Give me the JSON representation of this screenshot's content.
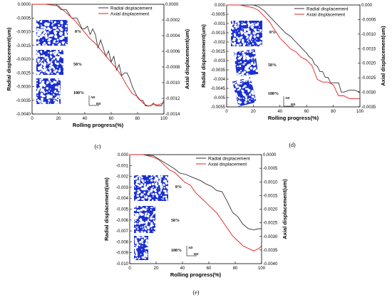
{
  "chart_data": [
    {
      "type": "line",
      "caption": "(c)",
      "xlabel": "Rolling progress(%)",
      "ylabel": "Radial displacement(um)",
      "y2label": "Axial displacement(um)",
      "xlim": [
        0,
        100
      ],
      "ylim": [
        -0.004,
        0.0
      ],
      "y2lim": [
        -0.0014,
        0.0
      ],
      "xticks": [
        "0",
        "20",
        "40",
        "60",
        "80",
        "100"
      ],
      "yticks": [
        "0.0000",
        "-0.0005",
        "-0.0010",
        "-0.0015",
        "-0.0020",
        "-0.0025",
        "-0.0030",
        "-0.0035",
        "-0.0040"
      ],
      "y2ticks": [
        "0.0000",
        "-0.0002",
        "-0.0004",
        "-0.0006",
        "-0.0008",
        "-0.0010",
        "-0.0012",
        "-0.0014"
      ],
      "series": [
        {
          "name": "Radial displacement",
          "color": "#333333",
          "axis": "left",
          "x": [
            0,
            10,
            18,
            22,
            26,
            30,
            34,
            38,
            40,
            42,
            44,
            46,
            48,
            50,
            52,
            54,
            56,
            58,
            60,
            62,
            64,
            66,
            68,
            70,
            72,
            74,
            76,
            78,
            80,
            82,
            84,
            86,
            88,
            90,
            92,
            94,
            96,
            98,
            100
          ],
          "values": [
            0.0,
            0.0,
            0.0,
            -0.0002,
            -0.0002,
            -0.0005,
            -0.0005,
            -0.0009,
            -0.0009,
            -0.0008,
            -0.0011,
            -0.0009,
            -0.0011,
            -0.0016,
            -0.0013,
            -0.0016,
            -0.0019,
            -0.0017,
            -0.0021,
            -0.0019,
            -0.0024,
            -0.0022,
            -0.0026,
            -0.0025,
            -0.0025,
            -0.0027,
            -0.003,
            -0.0032,
            -0.0034,
            -0.0035,
            -0.0035,
            -0.0037,
            -0.0037,
            -0.0037,
            -0.0036,
            -0.0037,
            -0.0037,
            -0.0037,
            -0.0035
          ]
        },
        {
          "name": "Axial displacement",
          "color": "#e02020",
          "axis": "right",
          "x": [
            0,
            10,
            20,
            24,
            28,
            32,
            36,
            40,
            44,
            48,
            52,
            56,
            60,
            64,
            68,
            72,
            76,
            80,
            84,
            88,
            92,
            96,
            100
          ],
          "values": [
            0.0,
            0.0,
            -2e-05,
            -8e-05,
            -0.00014,
            -0.0002,
            -0.00028,
            -0.00036,
            -0.00044,
            -0.0005,
            -0.00058,
            -0.00066,
            -0.00074,
            -0.00082,
            -0.00092,
            -0.00104,
            -0.00114,
            -0.00118,
            -0.00126,
            -0.0013,
            -0.00128,
            -0.00128,
            -0.00126
          ]
        }
      ],
      "insets": [
        {
          "label": "0%",
          "seed": 11,
          "rot": 0
        },
        {
          "label": "50%",
          "seed": 12,
          "rot": 0
        },
        {
          "label": "100%",
          "seed": 13,
          "rot": 0
        }
      ],
      "direction": {
        "ad": "AD",
        "rd": "RD"
      }
    },
    {
      "type": "line",
      "caption": "(d)",
      "xlabel": "Rolling progress(%)",
      "ylabel": "Radial displacement(um)",
      "y2label": "Axial displacement(um)",
      "xlim": [
        0,
        100
      ],
      "ylim": [
        -0.0055,
        0.0
      ],
      "y2lim": [
        -0.0037,
        0.0
      ],
      "xticks": [
        "0",
        "20",
        "40",
        "60",
        "80",
        "100"
      ],
      "yticks": [
        "0.000",
        "-0.0005",
        "-0.001",
        "-0.0015",
        "-0.002",
        "-0.0025",
        "-0.003",
        "-0.0035",
        "-0.004",
        "-0.0045",
        "-0.005",
        "-0.0055"
      ],
      "y2ticks": [
        "0.000",
        "-0.0005",
        "-0.0010",
        "-0.0015",
        "-0.0020",
        "-0.0025",
        "-0.0030",
        "-0.0035"
      ],
      "series": [
        {
          "name": "Radial displacement",
          "color": "#333333",
          "axis": "left",
          "x": [
            0,
            10,
            20,
            24,
            28,
            32,
            36,
            40,
            44,
            48,
            52,
            56,
            60,
            62,
            64,
            66,
            68,
            70,
            72,
            74,
            76,
            78,
            80,
            84,
            86,
            88,
            92,
            96,
            100
          ],
          "values": [
            0.0,
            0.0,
            0.0,
            -0.0001,
            -0.0003,
            -0.0006,
            -0.0009,
            -0.0012,
            -0.0015,
            -0.0017,
            -0.002,
            -0.0023,
            -0.0026,
            -0.0028,
            -0.0029,
            -0.0032,
            -0.0033,
            -0.0036,
            -0.0036,
            -0.0039,
            -0.0039,
            -0.0042,
            -0.0042,
            -0.0042,
            -0.0047,
            -0.0047,
            -0.0046,
            -0.0046,
            -0.0047
          ]
        },
        {
          "name": "Axial displacement",
          "color": "#e02020",
          "axis": "right",
          "x": [
            0,
            10,
            20,
            24,
            28,
            32,
            36,
            40,
            44,
            48,
            52,
            56,
            60,
            64,
            68,
            72,
            76,
            80,
            84,
            88,
            92,
            96,
            100
          ],
          "values": [
            0.0,
            0.0,
            -0.0001,
            -0.0002,
            -0.0004,
            -0.0006,
            -0.0009,
            -0.0012,
            -0.0014,
            -0.0016,
            -0.0017,
            -0.0019,
            -0.002,
            -0.0022,
            -0.0027,
            -0.0028,
            -0.0028,
            -0.0029,
            -0.0033,
            -0.0033,
            -0.0034,
            -0.0034,
            -0.0034
          ]
        }
      ],
      "insets": [
        {
          "label": "0%",
          "seed": 21,
          "rot": 0
        },
        {
          "label": "50%",
          "seed": 22,
          "rot": -8
        },
        {
          "label": "100%",
          "seed": 23,
          "rot": -14
        }
      ],
      "direction": {
        "ad": "AD",
        "rd": "RD"
      }
    },
    {
      "type": "line",
      "caption": "(e)",
      "xlabel": "Rolling progress(%)",
      "ylabel": "Radial displacement(um)",
      "y2label": "Axial displacement(um)",
      "xlim": [
        0,
        100
      ],
      "ylim": [
        -0.01,
        0.0
      ],
      "y2lim": [
        -0.0043,
        0.0
      ],
      "xticks": [
        "0",
        "20",
        "40",
        "60",
        "80",
        "100"
      ],
      "yticks": [
        "0.000",
        "-0.001",
        "-0.002",
        "-0.003",
        "-0.004",
        "-0.005",
        "-0.006",
        "-0.007",
        "-0.008",
        "-0.009",
        "-0.010"
      ],
      "y2ticks": [
        "0.0000",
        "-0.0005",
        "-0.0010",
        "-0.0015",
        "-0.0020",
        "-0.0025",
        "-0.0030",
        "-0.0035",
        "-0.0040"
      ],
      "series": [
        {
          "name": "Radial displacement",
          "color": "#333333",
          "axis": "left",
          "x": [
            0,
            10,
            18,
            22,
            26,
            30,
            34,
            38,
            42,
            46,
            50,
            54,
            58,
            62,
            66,
            70,
            74,
            78,
            82,
            86,
            90,
            94,
            98,
            100
          ],
          "values": [
            0.0,
            0.0,
            -0.0001,
            -0.0004,
            -0.0007,
            -0.001,
            -0.0013,
            -0.0017,
            -0.0018,
            -0.002,
            -0.0022,
            -0.0024,
            -0.0027,
            -0.0029,
            -0.0033,
            -0.0034,
            -0.0043,
            -0.0053,
            -0.0057,
            -0.0064,
            -0.0068,
            -0.0069,
            -0.0068,
            -0.0068
          ]
        },
        {
          "name": "Axial displacement",
          "color": "#e02020",
          "axis": "right",
          "x": [
            0,
            10,
            18,
            22,
            26,
            30,
            34,
            38,
            42,
            46,
            50,
            54,
            58,
            62,
            66,
            70,
            74,
            78,
            82,
            86,
            90,
            94,
            98,
            100
          ],
          "values": [
            0.0,
            0.0,
            -0.0001,
            -0.0002,
            -0.0004,
            -0.0006,
            -0.0007,
            -0.0009,
            -0.0011,
            -0.0012,
            -0.0015,
            -0.0017,
            -0.0019,
            -0.0021,
            -0.0023,
            -0.0026,
            -0.0029,
            -0.0032,
            -0.0034,
            -0.0036,
            -0.0037,
            -0.0038,
            -0.0037,
            -0.0036
          ]
        }
      ],
      "insets": [
        {
          "label": "0%",
          "seed": 31,
          "rot": 0
        },
        {
          "label": "50%",
          "seed": 32,
          "rot": 0
        },
        {
          "label": "100%",
          "seed": 33,
          "rot": 0
        }
      ],
      "direction": {
        "ad": "AD",
        "rd": "RD"
      }
    }
  ]
}
